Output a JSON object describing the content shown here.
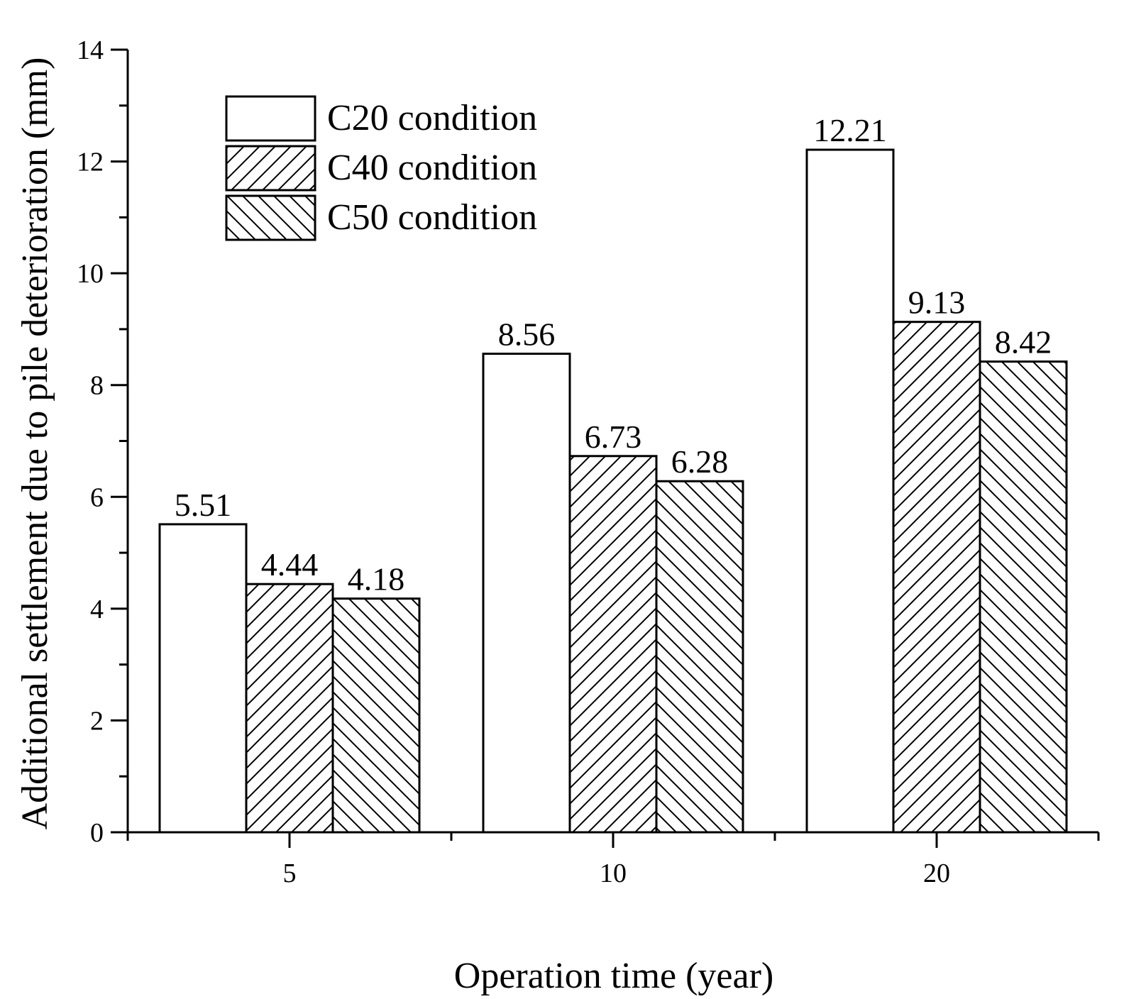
{
  "chart_data": {
    "type": "bar",
    "title": "",
    "xlabel": "Operation time (year)",
    "ylabel": "Additional settlement due to pile deterioration (mm)",
    "categories": [
      "5",
      "10",
      "20"
    ],
    "ylim": [
      0,
      14
    ],
    "yticks": [
      "0",
      "2",
      "4",
      "6",
      "8",
      "10",
      "12",
      "14"
    ],
    "grid": false,
    "legend_position": "top-left",
    "series": [
      {
        "name": "C20 condition",
        "pattern": "none",
        "values": [
          5.51,
          8.56,
          12.21
        ],
        "labels": [
          "5.51",
          "8.56",
          "12.21"
        ]
      },
      {
        "name": "C40 condition",
        "pattern": "forward-hatch",
        "values": [
          4.44,
          6.73,
          9.13
        ],
        "labels": [
          "4.44",
          "6.73",
          "9.13"
        ]
      },
      {
        "name": "C50 condition",
        "pattern": "back-hatch",
        "values": [
          4.18,
          6.28,
          8.42
        ],
        "labels": [
          "4.18",
          "6.28",
          "8.42"
        ]
      }
    ],
    "colors": {
      "stroke": "#000000",
      "fill": "#ffffff"
    }
  }
}
